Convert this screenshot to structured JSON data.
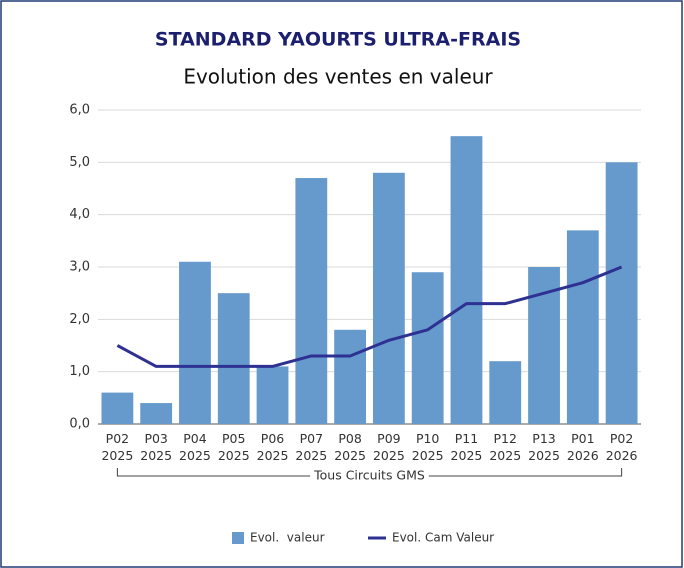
{
  "chart_data": {
    "type": "bar_line",
    "title": "STANDARD YAOURTS ULTRA-FRAIS",
    "subtitle": "Evolution des ventes en valeur",
    "categories": [
      "P02\n2025",
      "P03\n2025",
      "P04\n2025",
      "P05\n2025",
      "P06\n2025",
      "P07\n2025",
      "P08\n2025",
      "P09\n2025",
      "P10\n2025",
      "P11\n2025",
      "P12\n2025",
      "P13\n2025",
      "P01\n2026",
      "P02\n2026"
    ],
    "group_label": "Tous Circuits GMS",
    "series": [
      {
        "name": "Evol.  valeur",
        "type": "bar",
        "color": "#6699cc",
        "values": [
          0.6,
          0.4,
          3.1,
          2.5,
          1.1,
          4.7,
          1.8,
          4.8,
          2.9,
          5.5,
          1.2,
          3.0,
          3.7,
          5.0
        ]
      },
      {
        "name": "Evol. Cam Valeur",
        "type": "line",
        "color": "#2e3192",
        "values": [
          1.5,
          1.1,
          1.1,
          1.1,
          1.1,
          1.3,
          1.3,
          1.6,
          1.8,
          2.3,
          2.3,
          2.5,
          2.7,
          3.0
        ]
      }
    ],
    "ylim": [
      0,
      6
    ],
    "yticks": [
      {
        "value": 0,
        "label": "0,0"
      },
      {
        "value": 1,
        "label": "1,0"
      },
      {
        "value": 2,
        "label": "2,0"
      },
      {
        "value": 3,
        "label": "3,0"
      },
      {
        "value": 4,
        "label": "4,0"
      },
      {
        "value": 5,
        "label": "5,0"
      },
      {
        "value": 6,
        "label": "6,0"
      }
    ],
    "grid": true,
    "legend": "bottom"
  }
}
